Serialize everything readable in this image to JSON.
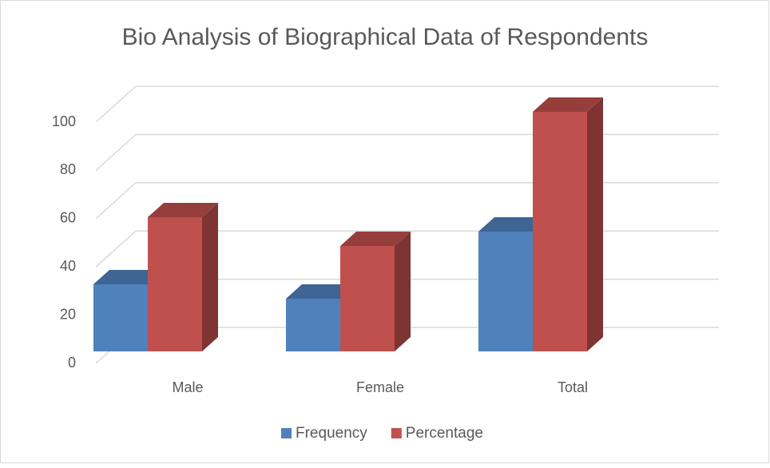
{
  "chart_data": {
    "type": "bar3d",
    "title": "Bio Analysis of Biographical Data of Respondents",
    "categories": [
      "Male",
      "Female",
      "Total"
    ],
    "series": [
      {
        "name": "Frequency",
        "color": "#4f81bd",
        "values": [
          28,
          22,
          50
        ]
      },
      {
        "name": "Percentage",
        "color": "#c0504d",
        "values": [
          56,
          44,
          100
        ]
      }
    ],
    "ylim": [
      0,
      100
    ],
    "yticks": [
      0,
      20,
      40,
      60,
      80,
      100
    ],
    "grid": true,
    "legend": "bottom"
  }
}
